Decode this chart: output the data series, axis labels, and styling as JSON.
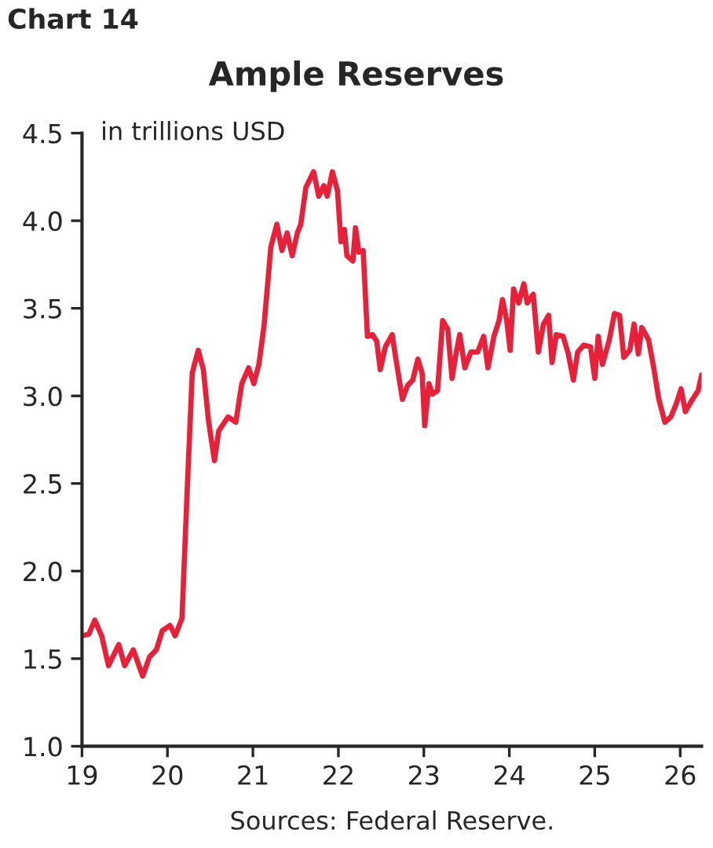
{
  "chart_data": {
    "type": "line",
    "title": "Ample Reserves",
    "ylabel": "in trillions USD",
    "annotations": [
      "Chart 14",
      "Sources: Federal Reserve."
    ],
    "xlim": [
      19,
      26.25
    ],
    "ylim": [
      1.0,
      4.5
    ],
    "xticks": [
      19,
      20,
      21,
      22,
      23,
      24,
      25,
      26
    ],
    "yticks": [
      {
        "value": 1.0,
        "label": "1.0"
      },
      {
        "value": 1.5,
        "label": "1.5"
      },
      {
        "value": 2.0,
        "label": "2.0"
      },
      {
        "value": 2.5,
        "label": "2.5"
      },
      {
        "value": 3.0,
        "label": "3.0"
      },
      {
        "value": 3.5,
        "label": "3.5"
      },
      {
        "value": 4.0,
        "label": "4.0"
      },
      {
        "value": 4.5,
        "label": "4.5"
      }
    ],
    "grid": false,
    "legend": false,
    "marker": "none",
    "line_style": "solid",
    "series": [
      {
        "color": "#e8203a",
        "x": [
          19.0,
          19.08,
          19.15,
          19.23,
          19.31,
          19.43,
          19.5,
          19.6,
          19.71,
          19.79,
          19.87,
          19.94,
          20.03,
          20.09,
          20.17,
          20.23,
          20.29,
          20.36,
          20.42,
          20.48,
          20.55,
          20.6,
          20.71,
          20.8,
          20.87,
          20.95,
          21.01,
          21.07,
          21.13,
          21.21,
          21.28,
          21.34,
          21.4,
          21.46,
          21.52,
          21.56,
          21.62,
          21.71,
          21.77,
          21.83,
          21.87,
          21.93,
          21.99,
          22.03,
          22.07,
          22.1,
          22.17,
          22.2,
          22.24,
          22.29,
          22.34,
          22.4,
          22.45,
          22.49,
          22.55,
          22.63,
          22.67,
          22.75,
          22.81,
          22.87,
          22.93,
          22.98,
          23.01,
          23.06,
          23.1,
          23.16,
          23.22,
          23.28,
          23.33,
          23.38,
          23.42,
          23.48,
          23.55,
          23.63,
          23.7,
          23.75,
          23.82,
          23.88,
          23.92,
          23.97,
          24.01,
          24.05,
          24.11,
          24.17,
          24.21,
          24.28,
          24.34,
          24.4,
          24.46,
          24.5,
          24.55,
          24.63,
          24.69,
          24.75,
          24.8,
          24.87,
          24.95,
          25.0,
          25.04,
          25.09,
          25.17,
          25.23,
          25.29,
          25.34,
          25.41,
          25.46,
          25.51,
          25.55,
          25.63,
          25.69,
          25.75,
          25.82,
          25.89,
          25.95,
          26.01,
          26.06,
          26.13,
          26.21,
          26.25
        ],
        "values": [
          1.63,
          1.64,
          1.72,
          1.63,
          1.46,
          1.58,
          1.46,
          1.55,
          1.4,
          1.51,
          1.55,
          1.66,
          1.69,
          1.63,
          1.73,
          2.45,
          3.13,
          3.26,
          3.15,
          2.86,
          2.63,
          2.8,
          2.88,
          2.85,
          3.07,
          3.16,
          3.07,
          3.18,
          3.4,
          3.85,
          3.98,
          3.83,
          3.93,
          3.8,
          3.93,
          3.98,
          4.19,
          4.28,
          4.14,
          4.2,
          4.14,
          4.28,
          4.17,
          3.88,
          3.95,
          3.8,
          3.77,
          3.96,
          3.82,
          3.83,
          3.34,
          3.35,
          3.31,
          3.15,
          3.28,
          3.35,
          3.22,
          2.98,
          3.06,
          3.09,
          3.21,
          3.13,
          2.83,
          3.07,
          3.01,
          3.03,
          3.43,
          3.38,
          3.1,
          3.25,
          3.35,
          3.16,
          3.25,
          3.25,
          3.34,
          3.16,
          3.34,
          3.43,
          3.55,
          3.43,
          3.26,
          3.61,
          3.53,
          3.64,
          3.53,
          3.58,
          3.25,
          3.41,
          3.46,
          3.19,
          3.35,
          3.34,
          3.24,
          3.09,
          3.25,
          3.29,
          3.28,
          3.1,
          3.34,
          3.18,
          3.32,
          3.47,
          3.46,
          3.22,
          3.26,
          3.41,
          3.24,
          3.39,
          3.32,
          3.16,
          2.98,
          2.85,
          2.88,
          2.95,
          3.04,
          2.91,
          2.97,
          3.03,
          3.12
        ]
      }
    ]
  }
}
